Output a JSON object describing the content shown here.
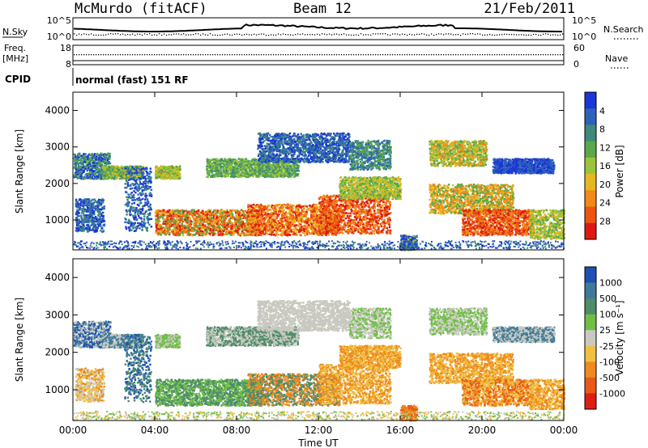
{
  "header": {
    "station": "McMurdo (fitACF)",
    "beam": "Beam 12",
    "date": "21/Feb/2011"
  },
  "left_labels": {
    "nsky": "N.Sky",
    "nsky_top": "10^5",
    "nsky_bottom": "10^0",
    "freq_line1": "Freq.",
    "freq_line2": "[MHz]",
    "freq_top": "18",
    "freq_bottom": "8",
    "cpid": "CPID"
  },
  "right_labels": {
    "nsearch": "N.Search",
    "nsearch_top": "10^5",
    "nsearch_bottom": "10^0",
    "nave": "Nave",
    "nave_top": "60",
    "nave_bottom": "0"
  },
  "mode_text": "normal (fast) 151 RF",
  "chart_data": [
    {
      "type": "heatmap",
      "name": "power",
      "ylabel": "Slant Range [km]",
      "ylim": [
        180,
        4500
      ],
      "yticks": [
        "1000",
        "2000",
        "3000",
        "4000"
      ],
      "xlim": [
        "00:00",
        "24:00"
      ],
      "colorbar_label": "Power [dB]",
      "colorbar_ticks": [
        "4",
        "8",
        "12",
        "16",
        "20",
        "24",
        "28"
      ],
      "colorbar_colors": [
        "#1a35d8",
        "#2e62b8",
        "#3e8a7c",
        "#5aa84a",
        "#9bc43c",
        "#e6b820",
        "#f08a18",
        "#ee5410",
        "#dd1a12"
      ]
    },
    {
      "type": "heatmap",
      "name": "velocity",
      "ylabel": "Slant Range [km]",
      "ylim": [
        180,
        4500
      ],
      "yticks": [
        "1000",
        "2000",
        "3000",
        "4000"
      ],
      "xlim": [
        "00:00",
        "24:00"
      ],
      "xlabel": "Time UT",
      "xticks": [
        "00:00",
        "04:00",
        "08:00",
        "12:00",
        "16:00",
        "20:00",
        "00:00"
      ],
      "colorbar_label": "Velocity [m s⁻¹]",
      "colorbar_ticks": [
        "1000",
        "500",
        "100",
        "25",
        "-25",
        "-100",
        "-500",
        "-1000"
      ],
      "colorbar_colors": [
        "#1f4fb0",
        "#3d7a9a",
        "#4e8c6a",
        "#6fbf45",
        "#c9c9c0",
        "#f0c040",
        "#ee8a20",
        "#e85a18",
        "#e01e14"
      ]
    }
  ]
}
